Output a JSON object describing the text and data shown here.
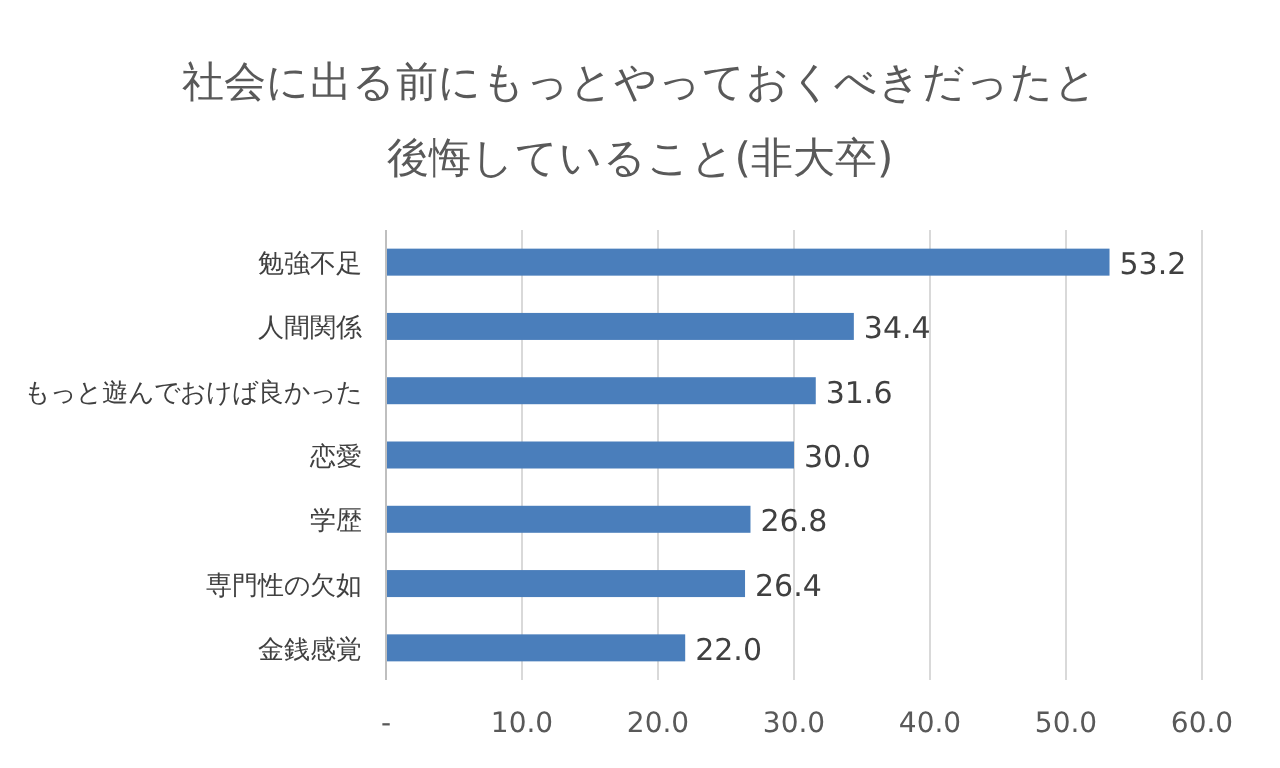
{
  "chart_data": {
    "type": "bar",
    "orientation": "horizontal",
    "title": "社会に出る前にもっとやっておくべきだったと後悔していること(非大卒)",
    "categories": [
      "勉強不足",
      "人間関係",
      "もっと遊んでおけば良かった",
      "恋愛",
      "学歴",
      "専門性の欠如",
      "金銭感覚"
    ],
    "values": [
      53.2,
      34.4,
      31.6,
      30.0,
      26.8,
      26.4,
      22.0
    ],
    "color": "#4a7ebb",
    "value_labels": [
      "53.2",
      "34.4",
      "31.6",
      "30.0",
      "26.8",
      "26.4",
      "22.0"
    ],
    "xlim": [
      0,
      60
    ],
    "xticks": [
      {
        "value": 0,
        "label": "-"
      },
      {
        "value": 10,
        "label": "10.0"
      },
      {
        "value": 20,
        "label": "20.0"
      },
      {
        "value": 30,
        "label": "30.0"
      },
      {
        "value": 40,
        "label": "40.0"
      },
      {
        "value": 50,
        "label": "50.0"
      },
      {
        "value": 60,
        "label": "60.0"
      }
    ],
    "grid": "x"
  }
}
